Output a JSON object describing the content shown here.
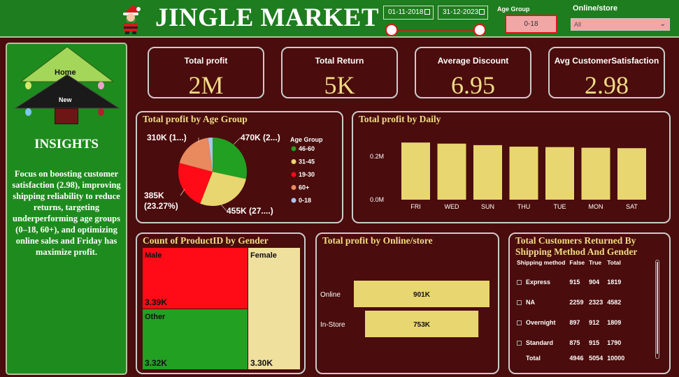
{
  "header": {
    "title": "JINGLE MARKET",
    "date_start": "01-11-2018",
    "date_end": "31-12-2023",
    "age_group_label": "Age Group",
    "age_group_value": "0-18",
    "online_store_label": "Online/store",
    "online_store_value": "All"
  },
  "nav": {
    "home": "Home",
    "new": "New"
  },
  "insights": {
    "title": "INSIGHTS",
    "text": "Focus on boosting customer satisfaction (2.98), improving shipping reliability to reduce returns, targeting underperforming age groups (0–18, 60+), and optimizing online sales and Friday has maximize profit."
  },
  "kpis": [
    {
      "label": "Total profit",
      "value": "2M"
    },
    {
      "label": "Total Return",
      "value": "5K"
    },
    {
      "label": "Average Discount",
      "value": "6.95"
    },
    {
      "label": "Avg CustomerSatisfaction",
      "value": "2.98"
    }
  ],
  "colors": {
    "green": "#22a022",
    "yellow": "#e8d670",
    "red": "#ff0a17",
    "orange": "#e8895e",
    "lightblue": "#a9c5f0",
    "cream": "#f0e09e"
  },
  "chart_data": [
    {
      "type": "pie",
      "title": "Total profit by Age Group",
      "legend_title": "Age Group",
      "legend_position": "right",
      "labels": [
        "46-60",
        "31-45",
        "19-30",
        "60+",
        "0-18"
      ],
      "values": [
        470,
        455,
        385,
        310,
        35
      ],
      "data_labels": [
        "470K (2...)",
        "455K (27....)",
        "385K (23.27%)",
        "310K (1...)",
        ""
      ],
      "colors": [
        "#22a022",
        "#e8d670",
        "#ff0a17",
        "#e8895e",
        "#a9c5f0"
      ]
    },
    {
      "type": "bar",
      "title": "Total profit by Daily",
      "categories": [
        "FRI",
        "WED",
        "SUN",
        "THU",
        "TUE",
        "MON",
        "SAT"
      ],
      "values": [
        0.264,
        0.259,
        0.252,
        0.245,
        0.243,
        0.24,
        0.238
      ],
      "ylim": [
        0,
        0.3
      ],
      "yticks": [
        {
          "value": 0,
          "label": "0.0M"
        },
        {
          "value": 0.2,
          "label": "0.2M"
        }
      ],
      "grid": false,
      "color": "#e8d670"
    },
    {
      "type": "treemap",
      "title": "Count of ProductID by Gender",
      "cells": [
        {
          "name": "Male",
          "value": 3390,
          "label": "3.39K",
          "color": "#ff0a17"
        },
        {
          "name": "Other",
          "value": 3320,
          "label": "3.32K",
          "color": "#22a022"
        },
        {
          "name": "Female",
          "value": 3300,
          "label": "3.30K",
          "color": "#f0e09e"
        }
      ]
    },
    {
      "type": "bar",
      "orientation": "horizontal",
      "title": "Total profit by Online/store",
      "categories": [
        "Online",
        "In-Store"
      ],
      "values": [
        901,
        753
      ],
      "data_labels": [
        "901K",
        "753K"
      ],
      "color": "#e8d670"
    },
    {
      "type": "table",
      "title": "Total Customers Returned By Shipping Method And Gender",
      "columns": [
        "Shipping method",
        "False",
        "True",
        "Total"
      ],
      "rows": [
        [
          "Express",
          "915",
          "904",
          "1819"
        ],
        [
          "NA",
          "2259",
          "2323",
          "4582"
        ],
        [
          "Overnight",
          "897",
          "912",
          "1809"
        ],
        [
          "Standard",
          "875",
          "915",
          "1790"
        ]
      ],
      "total": [
        "Total",
        "4946",
        "5054",
        "10000"
      ]
    }
  ]
}
